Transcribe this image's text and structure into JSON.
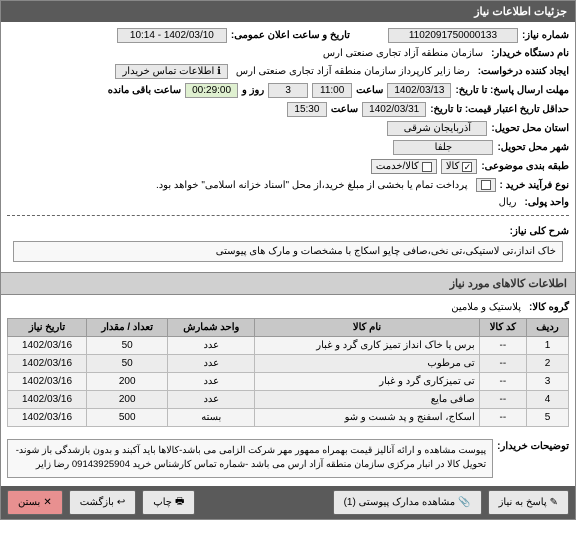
{
  "header": {
    "title": "جزئیات اطلاعات نیاز"
  },
  "fields": {
    "need_no_label": "شماره نیاز:",
    "need_no": "1102091750000133",
    "announce_label": "تاریخ و ساعت اعلان عمومی:",
    "announce": "1402/03/10 - 10:14",
    "buyer_org_label": "نام دستگاه خریدار:",
    "buyer_org": "سازمان منطقه آزاد تجاری صنعتی ارس",
    "creator_label": "ایجاد کننده درخواست:",
    "creator": "رضا زایر کارپرداز سازمان منطقه آزاد تجاری صنعتی ارس",
    "contact_link": "اطلاعات تماس خریدار",
    "deadline_label": "مهلت ارسال پاسخ: تا تاریخ:",
    "deadline_date": "1402/03/13",
    "time_label": "ساعت",
    "deadline_time": "11:00",
    "days_remain": "3",
    "days_remain_label": "روز و",
    "countdown": "00:29:00",
    "countdown_label": "ساعت باقی مانده",
    "credit_label": "حداقل تاریخ اعتبار قیمت: تا تاریخ:",
    "credit_date": "1402/03/31",
    "credit_time": "15:30",
    "delivery_province_label": "استان محل تحویل:",
    "delivery_province": "آذربایجان شرقی",
    "delivery_city_label": "شهر محل تحویل:",
    "delivery_city": "جلفا",
    "budget_cat_label": "طبقه بندی موضوعی:",
    "budget_kala": "کالا",
    "budget_service": "کالا/خدمت",
    "process_label": "نوع فرآیند خرید :",
    "process_note": "پرداخت تمام یا بخشی از مبلغ خرید،از محل \"اسناد خزانه اسلامی\" خواهد بود.",
    "unit_label": "واحد پولی:",
    "unit_value": "ریال"
  },
  "desc": {
    "label": "شرح کلی نیاز:",
    "text": "خاک انداز،تی لاستیکی،تی نخی،صافی چایو اسکاج با مشخصات و مارک های پیوستی"
  },
  "items_header": "اطلاعات کالاهای مورد نیاز",
  "group": {
    "label": "گروه کالا:",
    "value": "پلاستیک و ملامین"
  },
  "table": {
    "columns": [
      "ردیف",
      "کد کالا",
      "نام کالا",
      "واحد شمارش",
      "تعداد / مقدار",
      "تاریخ نیاز"
    ],
    "rows": [
      [
        "1",
        "--",
        "برس یا خاک انداز تمیز کاری گرد و غبار",
        "عدد",
        "50",
        "1402/03/16"
      ],
      [
        "2",
        "--",
        "تی مرطوب",
        "عدد",
        "50",
        "1402/03/16"
      ],
      [
        "3",
        "--",
        "تی تمیزکاری گرد و غبار",
        "عدد",
        "200",
        "1402/03/16"
      ],
      [
        "4",
        "--",
        "صافی مایع",
        "عدد",
        "200",
        "1402/03/16"
      ],
      [
        "5",
        "--",
        "اسکاج، اسفنج و پد شست و شو",
        "بسته",
        "500",
        "1402/03/16"
      ]
    ]
  },
  "buyer_notes": {
    "label": "توضیحات خریدار:",
    "text": "پیوست مشاهده و ارائه آنالیز قیمت بهمراه ممهور مهر شرکت الزامی می باشد-کالاها باید آکبند و بدون بازشدگی باز شوند-تحویل کالا در انبار مرکزی سازمان منطقه آزاد ارس می باشد -شماره تماس کارشناس خرید 09143925904 رضا زایر"
  },
  "footer": {
    "reply": "پاسخ به نیاز",
    "attach": "مشاهده مدارک پیوستی (1)",
    "print": "چاپ",
    "back": "بازگشت",
    "close": "بستن"
  },
  "colors": {
    "headerbg": "#5a5a5a",
    "border": "#888888"
  }
}
